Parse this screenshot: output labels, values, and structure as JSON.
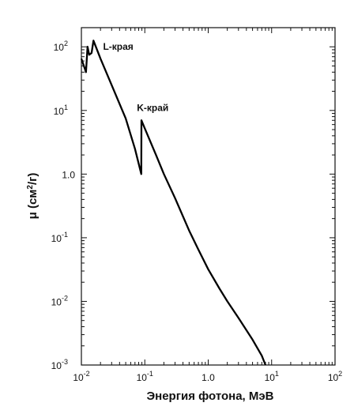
{
  "chart_data": {
    "type": "line",
    "title": "",
    "xlabel": "Энергия фотона, МэВ",
    "ylabel": "μ (см²/г)",
    "xscale": "log",
    "yscale": "log",
    "xlim": [
      0.01,
      100
    ],
    "ylim": [
      0.001,
      200
    ],
    "grid": false,
    "x_tick_labels": [
      {
        "value": 0.01,
        "base": "10",
        "exp": "-2"
      },
      {
        "value": 0.1,
        "base": "10",
        "exp": "-1"
      },
      {
        "value": 1,
        "base": "1.0",
        "exp": ""
      },
      {
        "value": 10,
        "base": "10",
        "exp": "1"
      },
      {
        "value": 100,
        "base": "10",
        "exp": "2"
      }
    ],
    "y_tick_labels": [
      {
        "value": 100,
        "base": "10",
        "exp": "2"
      },
      {
        "value": 10,
        "base": "10",
        "exp": "1"
      },
      {
        "value": 1,
        "base": "1.0",
        "exp": ""
      },
      {
        "value": 0.1,
        "base": "10",
        "exp": "-1"
      },
      {
        "value": 0.01,
        "base": "10",
        "exp": "-2"
      },
      {
        "value": 0.001,
        "base": "10",
        "exp": "-3"
      }
    ],
    "series": [
      {
        "color": "#000000",
        "points": [
          [
            0.01,
            65
          ],
          [
            0.0118,
            40
          ],
          [
            0.0125,
            100
          ],
          [
            0.0133,
            75
          ],
          [
            0.0145,
            80
          ],
          [
            0.0155,
            125
          ],
          [
            0.02,
            65
          ],
          [
            0.03,
            25
          ],
          [
            0.05,
            7.5
          ],
          [
            0.07,
            2.5
          ],
          [
            0.088,
            1.0
          ],
          [
            0.0885,
            7.0
          ],
          [
            0.1,
            5.2
          ],
          [
            0.15,
            2.0
          ],
          [
            0.2,
            1.0
          ],
          [
            0.3,
            0.42
          ],
          [
            0.5,
            0.13
          ],
          [
            0.7,
            0.065
          ],
          [
            1.0,
            0.032
          ],
          [
            1.5,
            0.016
          ],
          [
            2.0,
            0.01
          ],
          [
            3.0,
            0.0055
          ],
          [
            5.0,
            0.0025
          ],
          [
            7.0,
            0.0014
          ],
          [
            8.0,
            0.001
          ]
        ]
      }
    ],
    "annotations": [
      {
        "text": "L-края",
        "x": 0.022,
        "y": 100
      },
      {
        "text": "K-край",
        "x": 0.075,
        "y": 11
      }
    ]
  }
}
